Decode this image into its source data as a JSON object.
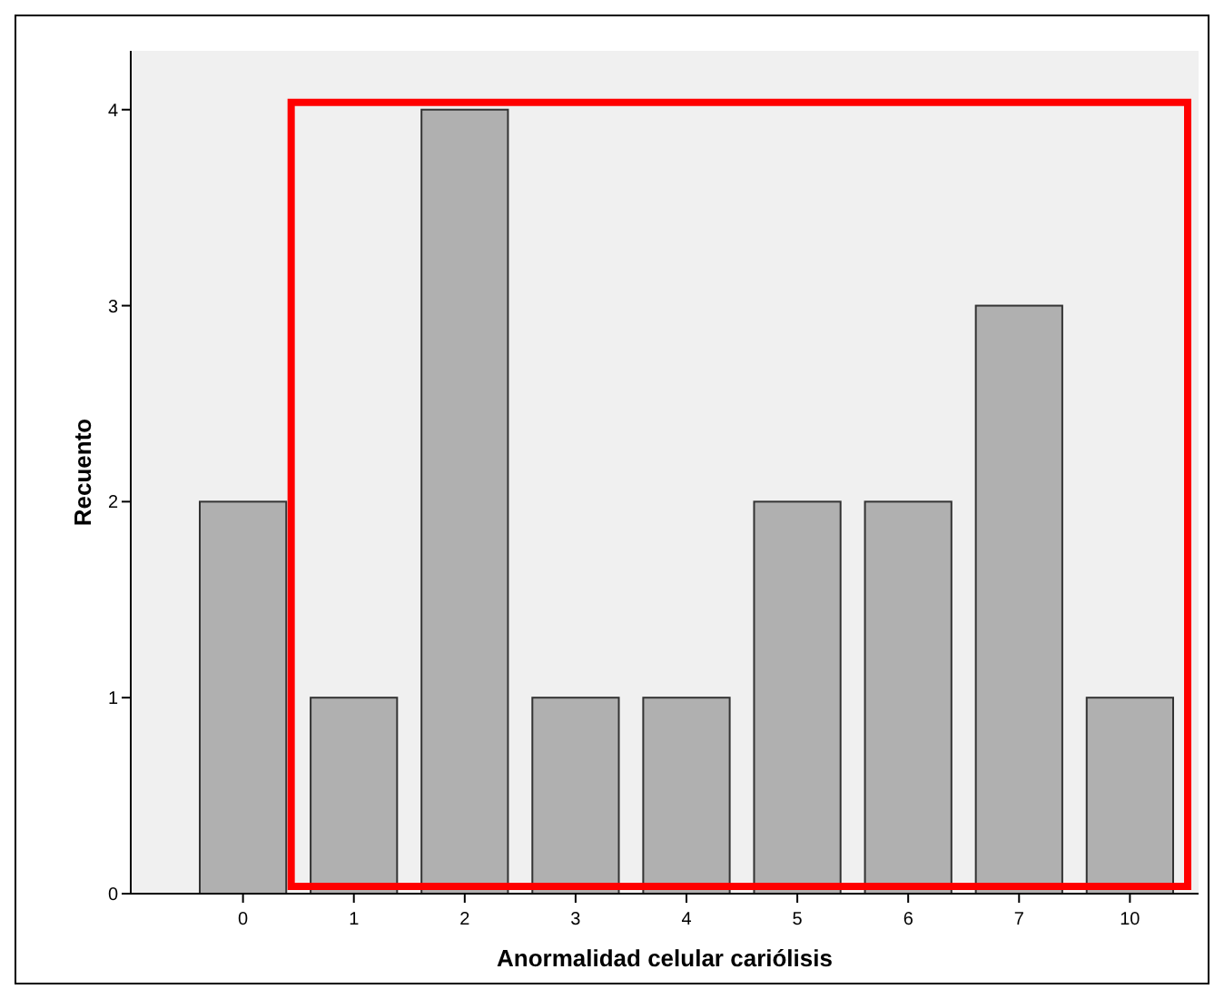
{
  "chart_data": {
    "type": "bar",
    "xlabel": "Anormalidad celular cariólisis",
    "ylabel": "Recuento",
    "categories": [
      "0",
      "1",
      "2",
      "3",
      "4",
      "5",
      "6",
      "7",
      "10"
    ],
    "values": [
      2,
      1,
      4,
      1,
      1,
      2,
      2,
      3,
      1
    ],
    "color": "#b0b0b0",
    "ylim": [
      0,
      4.3
    ],
    "yticks": [
      0,
      1,
      2,
      3,
      4
    ],
    "grid": false
  }
}
